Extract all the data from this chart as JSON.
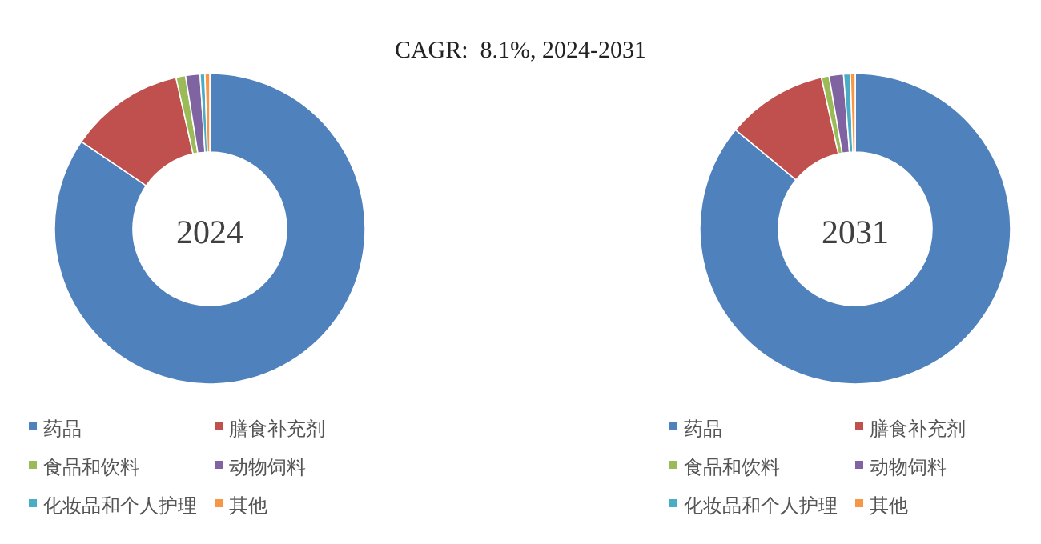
{
  "chart_data": [
    {
      "type": "donut",
      "title": "2024",
      "annotations": [
        "CAGR:  8.1%, 2024-2031"
      ],
      "categories": [
        "药品",
        "膳食补充剂",
        "食品和饮料",
        "动物饲料",
        "化妆品和个人护理",
        "其他"
      ],
      "values": [
        84.5,
        12,
        1,
        1.5,
        0.5,
        0.5
      ],
      "colors": [
        "#4f81bd",
        "#c0504d",
        "#9bbb59",
        "#8064a2",
        "#4bacc6",
        "#f79646"
      ],
      "legend": "bottom"
    },
    {
      "type": "donut",
      "title": "2031",
      "categories": [
        "药品",
        "膳食补充剂",
        "食品和饮料",
        "动物饲料",
        "化妆品和个人护理",
        "其他"
      ],
      "values": [
        86,
        10.5,
        0.8,
        1.5,
        0.7,
        0.5
      ],
      "colors": [
        "#4f81bd",
        "#c0504d",
        "#9bbb59",
        "#8064a2",
        "#4bacc6",
        "#f79646"
      ],
      "legend": "bottom"
    }
  ]
}
